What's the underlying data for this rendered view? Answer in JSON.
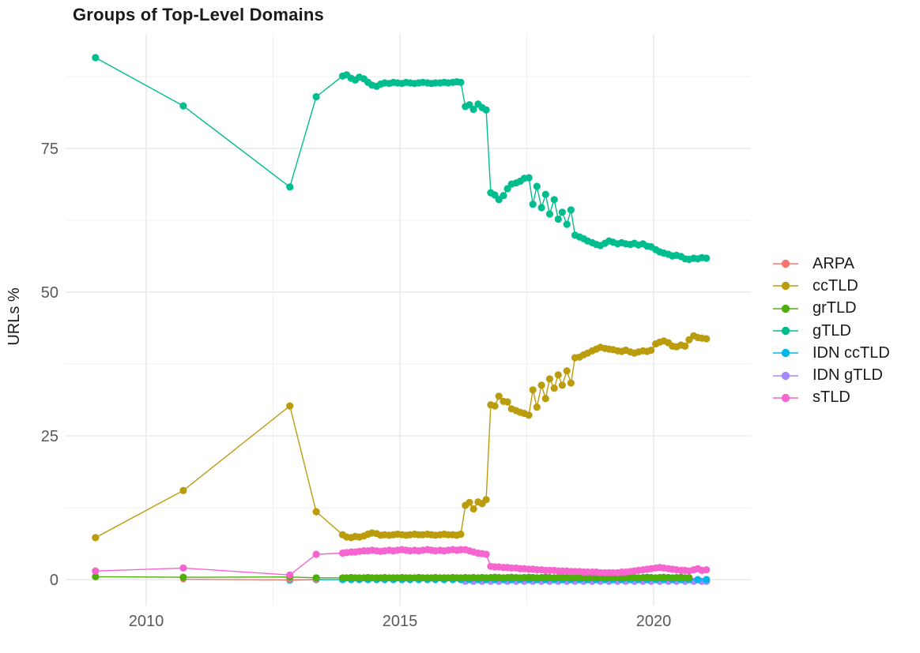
{
  "chart_data": {
    "type": "line",
    "title": "Groups of Top-Level Domains",
    "xlabel": "",
    "ylabel": "URLs %",
    "legend_position": "right",
    "grid": "major+minor",
    "background_color": "#ffffff",
    "grid_major_color": "#e4e4e4",
    "grid_minor_color": "#efefef",
    "axis_text_color": "#595959",
    "title_color": "#1a1a1a",
    "x_ticks": [
      2010,
      2015,
      2020
    ],
    "x_minor_ticks": [
      2012.5,
      2017.5
    ],
    "y_ticks": [
      0,
      25,
      50,
      75
    ],
    "y_minor_ticks": [
      12.5,
      37.5,
      62.5,
      87.5
    ],
    "xlim": [
      2008.45,
      2021.95
    ],
    "ylim": [
      -4.6,
      95.3
    ],
    "x": [
      2009.0,
      2010.73,
      2012.83,
      2013.35,
      2013.87,
      2013.95,
      2014.04,
      2014.12,
      2014.2,
      2014.29,
      2014.37,
      2014.45,
      2014.54,
      2014.62,
      2014.7,
      2014.79,
      2014.87,
      2014.95,
      2015.04,
      2015.12,
      2015.2,
      2015.29,
      2015.37,
      2015.45,
      2015.54,
      2015.62,
      2015.7,
      2015.79,
      2015.87,
      2015.95,
      2016.04,
      2016.12,
      2016.2,
      2016.29,
      2016.37,
      2016.45,
      2016.54,
      2016.62,
      2016.7,
      2016.79,
      2016.87,
      2016.95,
      2017.04,
      2017.12,
      2017.2,
      2017.29,
      2017.37,
      2017.45,
      2017.54,
      2017.62,
      2017.7,
      2017.79,
      2017.87,
      2017.95,
      2018.04,
      2018.12,
      2018.2,
      2018.29,
      2018.37,
      2018.45,
      2018.54,
      2018.62,
      2018.7,
      2018.79,
      2018.87,
      2018.95,
      2019.04,
      2019.12,
      2019.2,
      2019.29,
      2019.37,
      2019.45,
      2019.54,
      2019.62,
      2019.7,
      2019.79,
      2019.87,
      2019.95,
      2020.04,
      2020.12,
      2020.2,
      2020.29,
      2020.37,
      2020.45,
      2020.54,
      2020.62,
      2020.7,
      2020.79,
      2020.87,
      2020.95,
      2021.04
    ],
    "series": [
      {
        "name": "ARPA",
        "color": "#F8766D",
        "points": [
          [
            2010.73,
            0.05
          ],
          [
            2012.83,
            -0.05
          ],
          [
            2013.35,
            0.0
          ]
        ]
      },
      {
        "name": "ccTLD",
        "color": "#BA9C0C",
        "y": [
          7.3,
          15.5,
          30.2,
          11.8,
          7.8,
          7.4,
          7.3,
          7.5,
          7.4,
          7.6,
          7.9,
          8.1,
          8.0,
          7.7,
          7.8,
          7.7,
          7.8,
          7.9,
          7.8,
          7.7,
          7.8,
          7.9,
          7.8,
          7.8,
          7.9,
          7.8,
          7.7,
          7.8,
          7.9,
          7.8,
          7.8,
          7.7,
          7.9,
          12.9,
          13.4,
          12.3,
          13.5,
          13.2,
          13.9,
          30.4,
          30.2,
          31.9,
          31.0,
          30.9,
          29.7,
          29.4,
          29.1,
          28.9,
          28.6,
          33.0,
          30.0,
          33.8,
          31.5,
          34.9,
          33.3,
          35.6,
          33.8,
          36.3,
          34.2,
          38.6,
          38.7,
          39.1,
          39.4,
          39.8,
          40.1,
          40.4,
          40.2,
          40.1,
          40.0,
          39.8,
          39.7,
          39.9,
          39.6,
          39.4,
          39.6,
          39.8,
          39.7,
          39.9,
          41.0,
          41.3,
          41.5,
          41.2,
          40.6,
          40.5,
          40.8,
          40.6,
          41.7,
          42.4,
          42.1,
          42.0,
          41.9
        ]
      },
      {
        "name": "grTLD",
        "color": "#4FAE0B",
        "y": [
          0.5,
          0.4,
          0.45,
          0.3,
          0.3,
          0.3,
          0.35,
          0.3,
          0.3,
          0.3,
          0.35,
          0.3,
          0.3,
          0.3,
          0.35,
          0.3,
          0.3,
          0.3,
          0.35,
          0.3,
          0.3,
          0.3,
          0.35,
          0.3,
          0.3,
          0.3,
          0.35,
          0.3,
          0.3,
          0.3,
          0.35,
          0.3,
          0.3,
          0.35,
          0.3,
          0.35,
          0.3,
          0.35,
          0.3,
          0.35,
          0.4,
          0.35,
          0.3,
          0.35,
          0.4,
          0.35,
          0.3,
          0.35,
          0.4,
          0.35,
          0.3,
          0.35,
          0.4,
          0.35,
          0.3,
          0.35,
          0.4,
          0.35,
          0.3,
          0.35,
          0.4,
          0.35,
          0.3,
          0.35,
          0.4,
          0.35,
          0.3,
          0.35,
          0.4,
          0.35,
          0.3,
          0.35,
          0.4,
          0.35,
          0.3,
          0.35,
          0.4,
          0.35,
          0.3,
          0.35,
          0.4,
          0.35,
          0.3,
          0.35,
          0.4,
          0.3,
          0.3
        ]
      },
      {
        "name": "gTLD",
        "color": "#00BD8F",
        "y": [
          90.8,
          82.4,
          68.3,
          84.0,
          87.6,
          87.8,
          87.2,
          86.9,
          87.4,
          87.1,
          86.5,
          86.0,
          85.8,
          86.2,
          86.4,
          86.3,
          86.5,
          86.4,
          86.3,
          86.5,
          86.4,
          86.3,
          86.4,
          86.5,
          86.4,
          86.3,
          86.4,
          86.4,
          86.5,
          86.4,
          86.5,
          86.6,
          86.5,
          82.3,
          82.6,
          81.8,
          82.7,
          82.1,
          81.7,
          67.3,
          66.9,
          66.1,
          66.8,
          68.0,
          68.8,
          69.0,
          69.3,
          69.8,
          69.9,
          65.3,
          68.4,
          64.7,
          67.0,
          63.6,
          66.1,
          62.7,
          63.9,
          61.8,
          64.3,
          59.9,
          59.6,
          59.3,
          58.9,
          58.6,
          58.3,
          58.1,
          58.5,
          58.9,
          58.7,
          58.4,
          58.6,
          58.4,
          58.3,
          58.5,
          58.2,
          58.4,
          58.0,
          57.9,
          57.4,
          57.0,
          56.8,
          56.6,
          56.3,
          56.4,
          56.2,
          55.8,
          55.7,
          55.9,
          55.8,
          56.0,
          55.9
        ]
      },
      {
        "name": "IDN ccTLD",
        "color": "#00B6E8",
        "points": [
          [
            2012.83,
            -0.1
          ],
          [
            2013.35,
            0
          ],
          [
            2013.87,
            0
          ],
          [
            2014.04,
            0
          ],
          [
            2014.2,
            0
          ],
          [
            2014.37,
            0
          ],
          [
            2014.54,
            0
          ],
          [
            2014.7,
            0
          ],
          [
            2014.87,
            0
          ],
          [
            2015.04,
            0
          ],
          [
            2015.2,
            0
          ],
          [
            2015.37,
            0
          ],
          [
            2015.54,
            0
          ],
          [
            2015.7,
            0
          ],
          [
            2015.87,
            0
          ],
          [
            2016.04,
            0
          ],
          [
            2016.2,
            0
          ],
          [
            2016.37,
            0
          ],
          [
            2016.54,
            0
          ],
          [
            2016.7,
            0
          ],
          [
            2016.87,
            0
          ],
          [
            2017.04,
            0
          ],
          [
            2017.2,
            0
          ],
          [
            2017.37,
            0
          ],
          [
            2017.54,
            0
          ],
          [
            2017.7,
            0
          ],
          [
            2017.87,
            0
          ],
          [
            2018.04,
            0
          ],
          [
            2018.2,
            0
          ],
          [
            2018.37,
            0
          ],
          [
            2018.54,
            0
          ],
          [
            2018.7,
            0
          ],
          [
            2018.87,
            0
          ],
          [
            2019.04,
            0
          ],
          [
            2019.2,
            0
          ],
          [
            2019.37,
            0
          ],
          [
            2019.54,
            0
          ],
          [
            2019.7,
            0
          ],
          [
            2019.87,
            0
          ],
          [
            2020.04,
            0
          ],
          [
            2020.2,
            0
          ],
          [
            2020.37,
            0
          ],
          [
            2020.54,
            0
          ],
          [
            2020.7,
            0
          ],
          [
            2020.87,
            0
          ],
          [
            2021.04,
            0
          ]
        ]
      },
      {
        "name": "IDN gTLD",
        "color": "#A58AFF",
        "points": [
          [
            2016.29,
            -0.3
          ],
          [
            2016.45,
            -0.3
          ],
          [
            2016.62,
            -0.3
          ],
          [
            2016.79,
            -0.3
          ],
          [
            2016.95,
            -0.3
          ],
          [
            2017.12,
            -0.3
          ],
          [
            2017.29,
            -0.3
          ],
          [
            2017.45,
            -0.3
          ],
          [
            2017.62,
            -0.3
          ],
          [
            2017.79,
            -0.3
          ],
          [
            2017.95,
            -0.3
          ],
          [
            2018.12,
            -0.3
          ],
          [
            2018.29,
            -0.3
          ],
          [
            2018.45,
            -0.3
          ],
          [
            2018.62,
            -0.3
          ],
          [
            2018.79,
            -0.3
          ],
          [
            2018.95,
            -0.3
          ],
          [
            2019.12,
            -0.3
          ],
          [
            2019.29,
            -0.3
          ],
          [
            2019.45,
            -0.3
          ],
          [
            2019.62,
            -0.3
          ],
          [
            2019.79,
            -0.3
          ],
          [
            2019.95,
            -0.3
          ],
          [
            2020.12,
            -0.3
          ],
          [
            2020.29,
            -0.3
          ],
          [
            2020.45,
            -0.3
          ],
          [
            2020.62,
            -0.3
          ],
          [
            2020.79,
            -0.3
          ],
          [
            2020.95,
            -0.3
          ],
          [
            2021.04,
            -0.3
          ]
        ]
      },
      {
        "name": "sTLD",
        "color": "#F564CF",
        "y": [
          1.5,
          2.0,
          0.8,
          4.4,
          4.6,
          4.7,
          4.8,
          4.8,
          4.9,
          5.0,
          5.0,
          5.1,
          5.0,
          4.9,
          5.0,
          5.1,
          5.0,
          5.1,
          5.2,
          5.1,
          5.0,
          5.1,
          5.0,
          5.1,
          5.2,
          5.1,
          5.0,
          5.1,
          5.0,
          5.1,
          5.2,
          5.1,
          5.2,
          5.2,
          5.0,
          4.8,
          4.6,
          4.5,
          4.4,
          2.3,
          2.2,
          2.2,
          2.1,
          2.1,
          2.0,
          2.0,
          1.9,
          1.9,
          1.8,
          1.8,
          1.7,
          1.7,
          1.6,
          1.6,
          1.6,
          1.5,
          1.5,
          1.5,
          1.4,
          1.4,
          1.4,
          1.3,
          1.3,
          1.3,
          1.3,
          1.2,
          1.2,
          1.2,
          1.2,
          1.2,
          1.3,
          1.3,
          1.4,
          1.5,
          1.6,
          1.7,
          1.8,
          1.9,
          2.0,
          2.1,
          2.0,
          1.9,
          1.8,
          1.7,
          1.6,
          1.6,
          1.5,
          1.7,
          1.9,
          1.6,
          1.7
        ]
      }
    ]
  }
}
